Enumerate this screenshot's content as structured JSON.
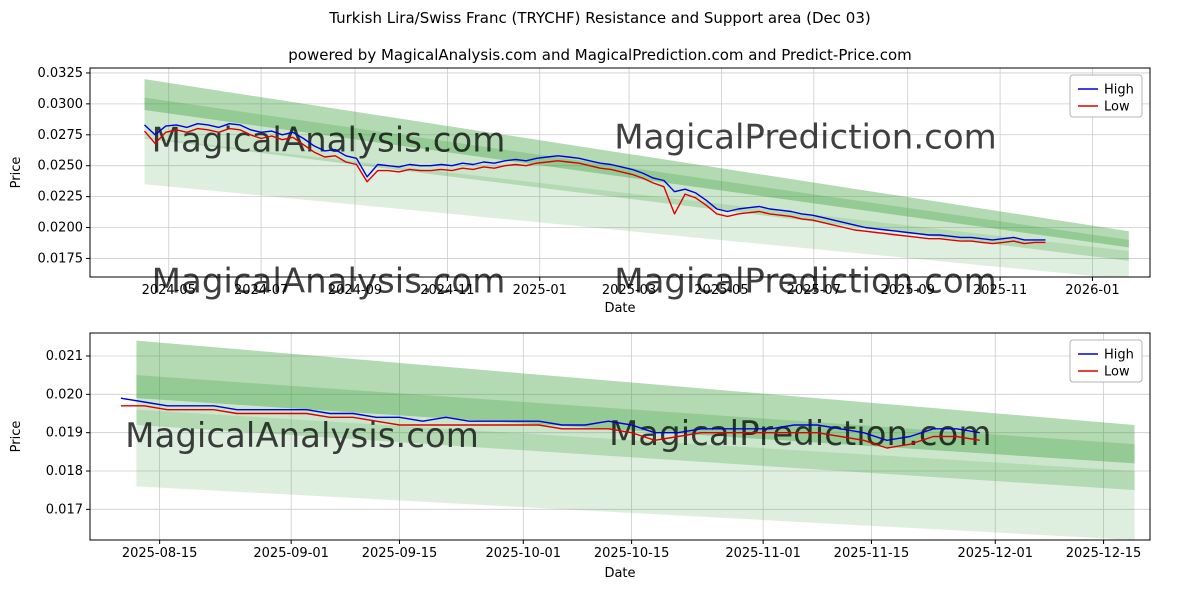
{
  "figure": {
    "title": "Turkish Lira/Swiss Franc (TRYCHF) Resistance and Support area (Dec 03)",
    "subtitle": "powered by MagicalAnalysis.com and MagicalPrediction.com and Predict-Price.com"
  },
  "colors": {
    "high_line": "#0000dd",
    "low_line": "#dd0000",
    "band": "#3a9e3a",
    "grid": "#cccccc",
    "watermark": "#cccccc",
    "axis": "#000000",
    "background": "#ffffff",
    "legend_border": "#b4b4b4"
  },
  "chart_data": [
    {
      "id": "main",
      "type": "line",
      "xlabel": "Date",
      "ylabel": "Price",
      "grid": true,
      "legend_position": "upper right",
      "xlim": [
        "2024-03-10",
        "2026-02-08"
      ],
      "ylim": [
        0.016,
        0.0329
      ],
      "x_ticks": [
        "2024-05",
        "2024-07",
        "2024-09",
        "2024-11",
        "2025-01",
        "2025-03",
        "2025-05",
        "2025-07",
        "2025-09",
        "2025-11",
        "2026-01"
      ],
      "y_ticks": [
        "0.0175",
        "0.0200",
        "0.0225",
        "0.0250",
        "0.0275",
        "0.0300",
        "0.0325"
      ],
      "x": [
        "2024-04-15",
        "2024-04-22",
        "2024-04-29",
        "2024-05-06",
        "2024-05-13",
        "2024-05-20",
        "2024-05-27",
        "2024-06-03",
        "2024-06-10",
        "2024-06-17",
        "2024-06-24",
        "2024-07-01",
        "2024-07-08",
        "2024-07-15",
        "2024-07-22",
        "2024-07-29",
        "2024-08-05",
        "2024-08-12",
        "2024-08-19",
        "2024-08-26",
        "2024-09-02",
        "2024-09-09",
        "2024-09-16",
        "2024-09-23",
        "2024-09-30",
        "2024-10-07",
        "2024-10-14",
        "2024-10-21",
        "2024-10-28",
        "2024-11-04",
        "2024-11-11",
        "2024-11-18",
        "2024-11-25",
        "2024-12-02",
        "2024-12-09",
        "2024-12-16",
        "2024-12-23",
        "2024-12-30",
        "2025-01-06",
        "2025-01-13",
        "2025-01-20",
        "2025-01-27",
        "2025-02-03",
        "2025-02-10",
        "2025-02-17",
        "2025-02-24",
        "2025-03-03",
        "2025-03-10",
        "2025-03-17",
        "2025-03-24",
        "2025-03-31",
        "2025-04-07",
        "2025-04-14",
        "2025-04-21",
        "2025-04-28",
        "2025-05-05",
        "2025-05-12",
        "2025-05-19",
        "2025-05-26",
        "2025-06-02",
        "2025-06-09",
        "2025-06-16",
        "2025-06-23",
        "2025-06-30",
        "2025-07-07",
        "2025-07-14",
        "2025-07-21",
        "2025-07-28",
        "2025-08-04",
        "2025-08-11",
        "2025-08-18",
        "2025-08-25",
        "2025-09-01",
        "2025-09-08",
        "2025-09-15",
        "2025-09-22",
        "2025-09-29",
        "2025-10-06",
        "2025-10-13",
        "2025-10-20",
        "2025-10-27",
        "2025-11-03",
        "2025-11-10",
        "2025-11-17",
        "2025-11-24",
        "2025-12-01"
      ],
      "series": [
        {
          "name": "High",
          "color": "#0000dd",
          "values": [
            0.0283,
            0.0275,
            0.0282,
            0.0283,
            0.0281,
            0.0284,
            0.0283,
            0.0281,
            0.0284,
            0.0283,
            0.0279,
            0.0277,
            0.0278,
            0.0275,
            0.0277,
            0.0272,
            0.0266,
            0.0262,
            0.0263,
            0.0258,
            0.0256,
            0.0241,
            0.0251,
            0.025,
            0.0249,
            0.0251,
            0.025,
            0.025,
            0.0251,
            0.025,
            0.0252,
            0.0251,
            0.0253,
            0.0252,
            0.0254,
            0.0255,
            0.0254,
            0.0256,
            0.0257,
            0.0258,
            0.0257,
            0.0256,
            0.0254,
            0.0252,
            0.0251,
            0.0249,
            0.0247,
            0.0244,
            0.024,
            0.0238,
            0.0229,
            0.0231,
            0.0228,
            0.0222,
            0.0215,
            0.0213,
            0.0215,
            0.0216,
            0.0217,
            0.0215,
            0.0214,
            0.0213,
            0.0211,
            0.021,
            0.0208,
            0.0206,
            0.0204,
            0.0202,
            0.02,
            0.0199,
            0.0198,
            0.0197,
            0.0196,
            0.0195,
            0.0194,
            0.0194,
            0.0193,
            0.0192,
            0.0192,
            0.0191,
            0.019,
            0.0191,
            0.0192,
            0.019,
            0.019,
            0.019
          ]
        },
        {
          "name": "Low",
          "color": "#dd0000",
          "values": [
            0.0278,
            0.0268,
            0.0277,
            0.0279,
            0.0277,
            0.028,
            0.0279,
            0.0277,
            0.028,
            0.0279,
            0.0275,
            0.0272,
            0.0274,
            0.0271,
            0.0273,
            0.0267,
            0.0261,
            0.0257,
            0.0258,
            0.0253,
            0.0251,
            0.0237,
            0.0246,
            0.0246,
            0.0245,
            0.0247,
            0.0246,
            0.0246,
            0.0247,
            0.0246,
            0.0248,
            0.0247,
            0.0249,
            0.0248,
            0.025,
            0.0251,
            0.025,
            0.0252,
            0.0253,
            0.0254,
            0.0253,
            0.0252,
            0.025,
            0.0248,
            0.0247,
            0.0245,
            0.0243,
            0.024,
            0.0236,
            0.0233,
            0.0211,
            0.0227,
            0.0224,
            0.0218,
            0.0211,
            0.0209,
            0.0211,
            0.0212,
            0.0213,
            0.0211,
            0.021,
            0.0209,
            0.0207,
            0.0206,
            0.0204,
            0.0202,
            0.02,
            0.0198,
            0.0197,
            0.0196,
            0.0195,
            0.0194,
            0.0193,
            0.0192,
            0.0191,
            0.0191,
            0.019,
            0.0189,
            0.0189,
            0.0188,
            0.0187,
            0.0188,
            0.0189,
            0.0187,
            0.0188,
            0.0188
          ]
        }
      ],
      "band_x": [
        "2024-04-15",
        "2026-01-25"
      ],
      "bands": [
        {
          "top": [
            0.032,
            0.0197
          ],
          "bottom": [
            0.0295,
            0.0184
          ],
          "opacity": 0.38
        },
        {
          "top": [
            0.0305,
            0.019
          ],
          "bottom": [
            0.0272,
            0.0173
          ],
          "opacity": 0.26
        },
        {
          "top": [
            0.0273,
            0.0181
          ],
          "bottom": [
            0.0235,
            0.0158
          ],
          "opacity": 0.16
        }
      ],
      "watermarks": [
        {
          "text": "MagicalAnalysis.com",
          "fx": 0.225,
          "fy": 0.4
        },
        {
          "text": "MagicalPrediction.com",
          "fx": 0.675,
          "fy": 0.385
        },
        {
          "text": "MagicalAnalysis.com",
          "fx": 0.225,
          "fy": 1.075
        },
        {
          "text": "MagicalPrediction.com",
          "fx": 0.675,
          "fy": 1.075
        }
      ]
    },
    {
      "id": "zoom",
      "type": "line",
      "xlabel": "Date",
      "ylabel": "Price",
      "grid": true,
      "legend_position": "upper right",
      "xlim": [
        "2025-08-06",
        "2025-12-21"
      ],
      "ylim": [
        0.0162,
        0.0216
      ],
      "x_ticks": [
        "2025-08-15",
        "2025-09-01",
        "2025-09-15",
        "2025-10-01",
        "2025-10-15",
        "2025-11-01",
        "2025-11-15",
        "2025-12-01",
        "2025-12-15"
      ],
      "y_ticks": [
        "0.017",
        "0.018",
        "0.019",
        "0.020",
        "0.021"
      ],
      "x": [
        "2025-08-10",
        "2025-08-13",
        "2025-08-16",
        "2025-08-19",
        "2025-08-22",
        "2025-08-25",
        "2025-08-28",
        "2025-08-31",
        "2025-09-03",
        "2025-09-06",
        "2025-09-09",
        "2025-09-12",
        "2025-09-15",
        "2025-09-18",
        "2025-09-21",
        "2025-09-24",
        "2025-09-27",
        "2025-09-30",
        "2025-10-03",
        "2025-10-06",
        "2025-10-09",
        "2025-10-12",
        "2025-10-15",
        "2025-10-18",
        "2025-10-21",
        "2025-10-24",
        "2025-10-27",
        "2025-10-30",
        "2025-11-02",
        "2025-11-05",
        "2025-11-08",
        "2025-11-11",
        "2025-11-14",
        "2025-11-17",
        "2025-11-20",
        "2025-11-23",
        "2025-11-26",
        "2025-11-29"
      ],
      "series": [
        {
          "name": "High",
          "color": "#0000dd",
          "values": [
            0.0199,
            0.0198,
            0.0197,
            0.0197,
            0.0197,
            0.0196,
            0.0196,
            0.0196,
            0.0196,
            0.0195,
            0.0195,
            0.0194,
            0.0194,
            0.0193,
            0.0194,
            0.0193,
            0.0193,
            0.0193,
            0.0193,
            0.0192,
            0.0192,
            0.0193,
            0.0192,
            0.019,
            0.019,
            0.0191,
            0.0191,
            0.0191,
            0.0191,
            0.0192,
            0.0192,
            0.0191,
            0.019,
            0.0188,
            0.0189,
            0.0191,
            0.0191,
            0.019
          ]
        },
        {
          "name": "Low",
          "color": "#dd0000",
          "values": [
            0.0197,
            0.0197,
            0.0196,
            0.0196,
            0.0196,
            0.0195,
            0.0195,
            0.0195,
            0.0195,
            0.0194,
            0.0194,
            0.0193,
            0.0192,
            0.0192,
            0.0192,
            0.0192,
            0.0192,
            0.0192,
            0.0192,
            0.0191,
            0.0191,
            0.0191,
            0.019,
            0.0188,
            0.0189,
            0.019,
            0.019,
            0.019,
            0.019,
            0.019,
            0.019,
            0.0189,
            0.0188,
            0.0186,
            0.0187,
            0.0189,
            0.0189,
            0.0188
          ]
        }
      ],
      "band_x": [
        "2025-08-12",
        "2025-12-19"
      ],
      "bands": [
        {
          "top": [
            0.0214,
            0.0192
          ],
          "bottom": [
            0.0199,
            0.0182
          ],
          "opacity": 0.38
        },
        {
          "top": [
            0.0205,
            0.0187
          ],
          "bottom": [
            0.0192,
            0.0175
          ],
          "opacity": 0.26
        },
        {
          "top": [
            0.0196,
            0.018
          ],
          "bottom": [
            0.0176,
            0.0162
          ],
          "opacity": 0.16
        }
      ],
      "watermarks": [
        {
          "text": "MagicalAnalysis.com",
          "fx": 0.2,
          "fy": 0.55
        },
        {
          "text": "MagicalPrediction.com",
          "fx": 0.67,
          "fy": 0.54
        }
      ]
    }
  ]
}
